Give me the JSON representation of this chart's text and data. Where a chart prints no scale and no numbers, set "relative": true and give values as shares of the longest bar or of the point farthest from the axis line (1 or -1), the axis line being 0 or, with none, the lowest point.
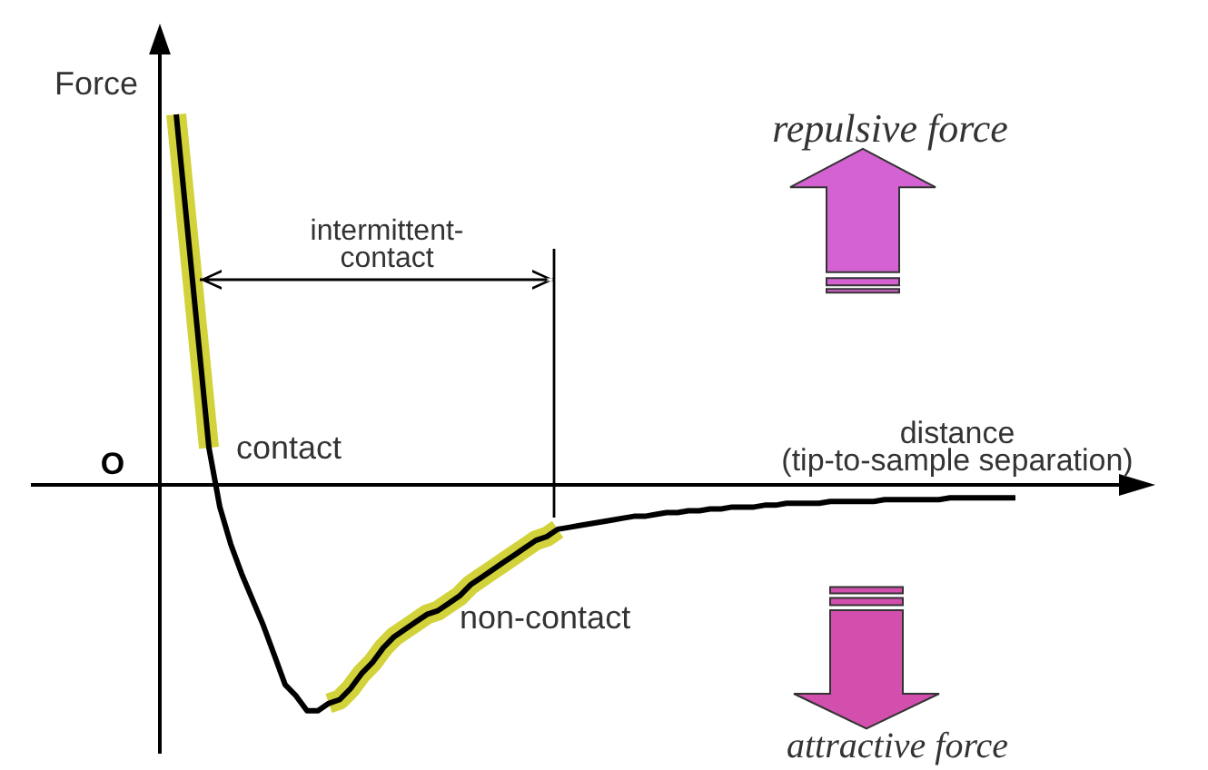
{
  "chart_data": {
    "type": "line",
    "relative": true,
    "xlabel": "distance\n(tip-to-sample separation)",
    "ylabel": "Force",
    "annotations": [
      "O",
      "intermittent-\ncontact",
      "repulsive force",
      "attractive force"
    ],
    "categories": [
      null,
      null,
      null,
      null,
      null,
      null,
      null,
      null,
      null,
      null,
      null,
      null,
      null,
      null,
      null,
      null,
      null,
      null,
      null,
      null,
      null,
      null,
      null,
      null,
      null,
      null,
      null,
      null,
      null,
      null,
      null,
      null,
      null,
      null,
      null,
      null,
      null,
      null,
      null,
      null,
      null,
      null,
      null,
      null,
      null,
      null,
      null,
      null,
      null,
      null,
      null,
      null,
      null,
      null,
      null,
      null,
      null,
      null,
      null,
      null,
      null,
      null,
      null,
      null,
      null,
      null,
      null,
      null,
      null,
      null,
      null,
      null,
      null,
      null,
      null,
      null,
      null,
      null
    ],
    "series": [
      {
        "name": "contact",
        "color": "#d2d23a",
        "values": [
          1.0,
          0.7,
          0.4,
          0.1,
          null,
          null,
          null,
          null,
          null,
          null,
          null,
          null,
          null,
          null,
          null,
          null,
          null,
          null,
          null,
          null,
          null,
          null,
          null,
          null,
          null,
          null,
          null,
          null,
          null,
          null,
          null,
          null,
          null,
          null,
          null,
          null,
          null,
          null,
          null,
          null,
          null,
          null,
          null,
          null,
          null,
          null,
          null,
          null,
          null,
          null,
          null,
          null,
          null,
          null,
          null,
          null,
          null,
          null,
          null,
          null,
          null,
          null,
          null,
          null,
          null,
          null,
          null,
          null,
          null,
          null,
          null,
          null,
          null,
          null,
          null,
          null,
          null,
          null
        ]
      },
      {
        "name": "non-contact",
        "color": "#d2d23a",
        "values": [
          null,
          null,
          null,
          null,
          null,
          null,
          null,
          null,
          null,
          null,
          null,
          null,
          null,
          null,
          -0.59,
          -0.58,
          -0.55,
          -0.51,
          -0.48,
          -0.44,
          -0.41,
          -0.39,
          -0.37,
          -0.35,
          -0.34,
          -0.32,
          -0.3,
          -0.27,
          -0.25,
          -0.23,
          -0.21,
          -0.19,
          -0.17,
          -0.15,
          -0.14,
          -0.12,
          null,
          null,
          null,
          null,
          null,
          null,
          null,
          null,
          null,
          null,
          null,
          null,
          null,
          null,
          null,
          null,
          null,
          null,
          null,
          null,
          null,
          null,
          null,
          null,
          null,
          null,
          null,
          null,
          null,
          null,
          null,
          null,
          null,
          null,
          null,
          null,
          null,
          null,
          null,
          null,
          null,
          null
        ]
      },
      {
        "color": "#000000",
        "values": [
          1.0,
          0.7,
          0.4,
          0.1,
          -0.06,
          -0.16,
          -0.24,
          -0.31,
          -0.38,
          -0.46,
          -0.54,
          -0.57,
          -0.61,
          -0.61,
          -0.59,
          -0.58,
          -0.55,
          -0.51,
          -0.48,
          -0.44,
          -0.41,
          -0.39,
          -0.37,
          -0.35,
          -0.34,
          -0.32,
          -0.3,
          -0.27,
          -0.25,
          -0.23,
          -0.21,
          -0.19,
          -0.17,
          -0.15,
          -0.14,
          -0.12,
          -0.115,
          -0.11,
          -0.105,
          -0.1,
          -0.095,
          -0.09,
          -0.085,
          -0.085,
          -0.08,
          -0.075,
          -0.075,
          -0.07,
          -0.07,
          -0.065,
          -0.065,
          -0.06,
          -0.06,
          -0.06,
          -0.055,
          -0.055,
          -0.05,
          -0.05,
          -0.05,
          -0.05,
          -0.045,
          -0.045,
          -0.045,
          -0.045,
          -0.045,
          -0.04,
          -0.04,
          -0.04,
          -0.04,
          -0.04,
          -0.04,
          -0.035,
          -0.035,
          -0.035,
          -0.035,
          -0.035,
          -0.035,
          -0.035
        ]
      }
    ]
  }
}
